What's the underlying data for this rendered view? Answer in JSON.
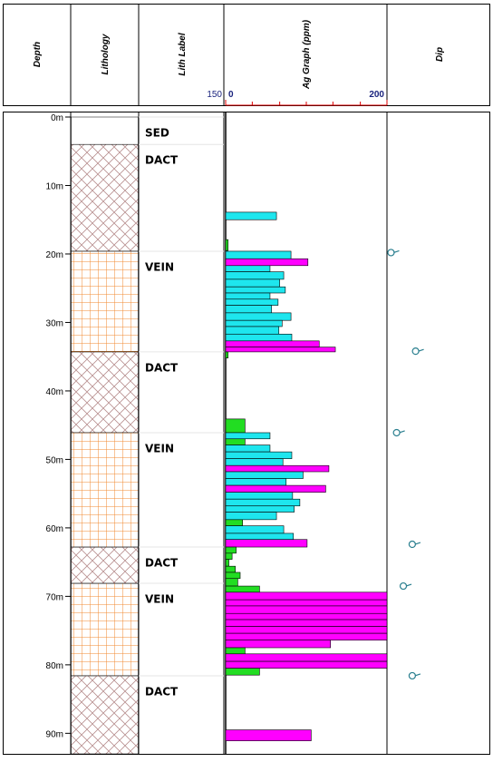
{
  "chart_data": {
    "type": "well-log",
    "headers": {
      "depth": "Depth",
      "lithology": "Lithology",
      "lith_label": "Lith Label",
      "graph": "Ag Graph (ppm)",
      "dip": "Dip",
      "label_scale": "150"
    },
    "ylim": [
      0,
      93
    ],
    "yticks": [
      {
        "value": 0,
        "label": "0m"
      },
      {
        "value": 10,
        "label": "10m"
      },
      {
        "value": 20,
        "label": "20m"
      },
      {
        "value": 30,
        "label": "30m"
      },
      {
        "value": 40,
        "label": "40m"
      },
      {
        "value": 50,
        "label": "50m"
      },
      {
        "value": 60,
        "label": "60m"
      },
      {
        "value": 70,
        "label": "70m"
      },
      {
        "value": 80,
        "label": "80m"
      },
      {
        "value": 90,
        "label": "90m"
      }
    ],
    "xlim": [
      0,
      200
    ],
    "xticks": [
      0,
      200
    ],
    "xminor": [
      33,
      67,
      100,
      133,
      167
    ],
    "dip_xlim": [
      0,
      90
    ],
    "palette": {
      "cyan": "#1ee6ee",
      "magenta": "#ff00ff",
      "green": "#22dd22"
    },
    "lithology": [
      {
        "from": 0,
        "to": 4,
        "label": "SED",
        "pattern": "none"
      },
      {
        "from": 4,
        "to": 19.6,
        "label": "DACT",
        "pattern": "cross"
      },
      {
        "from": 19.6,
        "to": 34.3,
        "label": "VEIN",
        "pattern": "grid"
      },
      {
        "from": 34.3,
        "to": 46.1,
        "label": "DACT",
        "pattern": "cross"
      },
      {
        "from": 46.1,
        "to": 62.8,
        "label": "VEIN",
        "pattern": "grid"
      },
      {
        "from": 62.8,
        "to": 68.1,
        "label": "DACT",
        "pattern": "cross"
      },
      {
        "from": 68.1,
        "to": 81.6,
        "label": "VEIN",
        "pattern": "grid"
      },
      {
        "from": 81.6,
        "to": 93,
        "label": "DACT",
        "pattern": "cross"
      }
    ],
    "intervals": [
      {
        "from": 13.9,
        "to": 15.0,
        "value": 63,
        "color": "cyan"
      },
      {
        "from": 17.9,
        "to": 19.5,
        "value": 3,
        "color": "green"
      },
      {
        "from": 19.6,
        "to": 20.7,
        "value": 81,
        "color": "cyan"
      },
      {
        "from": 20.7,
        "to": 21.7,
        "value": 102,
        "color": "magenta"
      },
      {
        "from": 21.7,
        "to": 22.6,
        "value": 55,
        "color": "cyan"
      },
      {
        "from": 22.6,
        "to": 23.7,
        "value": 72,
        "color": "cyan"
      },
      {
        "from": 23.7,
        "to": 24.8,
        "value": 67,
        "color": "cyan"
      },
      {
        "from": 24.8,
        "to": 25.7,
        "value": 74,
        "color": "cyan"
      },
      {
        "from": 25.7,
        "to": 26.6,
        "value": 55,
        "color": "cyan"
      },
      {
        "from": 26.6,
        "to": 27.5,
        "value": 65,
        "color": "cyan"
      },
      {
        "from": 27.5,
        "to": 28.6,
        "value": 57,
        "color": "cyan"
      },
      {
        "from": 28.6,
        "to": 29.7,
        "value": 81,
        "color": "cyan"
      },
      {
        "from": 29.7,
        "to": 30.6,
        "value": 70,
        "color": "cyan"
      },
      {
        "from": 30.6,
        "to": 31.7,
        "value": 66,
        "color": "cyan"
      },
      {
        "from": 31.7,
        "to": 32.7,
        "value": 82,
        "color": "cyan"
      },
      {
        "from": 32.7,
        "to": 33.6,
        "value": 116,
        "color": "magenta"
      },
      {
        "from": 33.6,
        "to": 34.3,
        "value": 136,
        "color": "magenta"
      },
      {
        "from": 34.3,
        "to": 35.2,
        "value": 3,
        "color": "green"
      },
      {
        "from": 44.1,
        "to": 46.1,
        "value": 24,
        "color": "green"
      },
      {
        "from": 46.1,
        "to": 47.0,
        "value": 55,
        "color": "cyan"
      },
      {
        "from": 47.0,
        "to": 47.9,
        "value": 24,
        "color": "green"
      },
      {
        "from": 47.9,
        "to": 48.9,
        "value": 55,
        "color": "cyan"
      },
      {
        "from": 48.9,
        "to": 49.9,
        "value": 82,
        "color": "cyan"
      },
      {
        "from": 49.9,
        "to": 50.9,
        "value": 71,
        "color": "cyan"
      },
      {
        "from": 50.9,
        "to": 51.8,
        "value": 128,
        "color": "magenta"
      },
      {
        "from": 51.8,
        "to": 52.8,
        "value": 96,
        "color": "cyan"
      },
      {
        "from": 52.8,
        "to": 53.8,
        "value": 75,
        "color": "cyan"
      },
      {
        "from": 53.8,
        "to": 54.8,
        "value": 124,
        "color": "magenta"
      },
      {
        "from": 54.8,
        "to": 55.8,
        "value": 83,
        "color": "cyan"
      },
      {
        "from": 55.8,
        "to": 56.8,
        "value": 92,
        "color": "cyan"
      },
      {
        "from": 56.8,
        "to": 57.7,
        "value": 85,
        "color": "cyan"
      },
      {
        "from": 57.7,
        "to": 58.8,
        "value": 63,
        "color": "cyan"
      },
      {
        "from": 58.8,
        "to": 59.7,
        "value": 21,
        "color": "green"
      },
      {
        "from": 59.7,
        "to": 60.8,
        "value": 72,
        "color": "cyan"
      },
      {
        "from": 60.8,
        "to": 61.7,
        "value": 84,
        "color": "cyan"
      },
      {
        "from": 61.7,
        "to": 62.8,
        "value": 101,
        "color": "magenta"
      },
      {
        "from": 62.8,
        "to": 63.7,
        "value": 13,
        "color": "green"
      },
      {
        "from": 63.7,
        "to": 64.6,
        "value": 8,
        "color": "green"
      },
      {
        "from": 64.6,
        "to": 65.6,
        "value": 4,
        "color": "green"
      },
      {
        "from": 65.6,
        "to": 66.5,
        "value": 12,
        "color": "green"
      },
      {
        "from": 66.5,
        "to": 67.4,
        "value": 18,
        "color": "green"
      },
      {
        "from": 67.4,
        "to": 68.5,
        "value": 15,
        "color": "green"
      },
      {
        "from": 68.5,
        "to": 69.4,
        "value": 42,
        "color": "green"
      },
      {
        "from": 69.4,
        "to": 70.5,
        "value": 200,
        "color": "magenta"
      },
      {
        "from": 70.5,
        "to": 71.4,
        "value": 200,
        "color": "magenta"
      },
      {
        "from": 71.4,
        "to": 72.5,
        "value": 200,
        "color": "magenta"
      },
      {
        "from": 72.5,
        "to": 73.4,
        "value": 200,
        "color": "magenta"
      },
      {
        "from": 73.4,
        "to": 74.4,
        "value": 200,
        "color": "magenta"
      },
      {
        "from": 74.4,
        "to": 75.4,
        "value": 200,
        "color": "magenta"
      },
      {
        "from": 75.4,
        "to": 76.4,
        "value": 200,
        "color": "magenta"
      },
      {
        "from": 76.4,
        "to": 77.5,
        "value": 130,
        "color": "magenta"
      },
      {
        "from": 77.5,
        "to": 78.4,
        "value": 24,
        "color": "green"
      },
      {
        "from": 78.4,
        "to": 79.5,
        "value": 200,
        "color": "magenta"
      },
      {
        "from": 79.5,
        "to": 80.5,
        "value": 200,
        "color": "magenta"
      },
      {
        "from": 80.5,
        "to": 81.5,
        "value": 42,
        "color": "green"
      },
      {
        "from": 89.5,
        "to": 91.1,
        "value": 106,
        "color": "magenta"
      }
    ],
    "dips": [
      {
        "depth": 19.8,
        "dip": 2
      },
      {
        "depth": 34.2,
        "dip": 24
      },
      {
        "depth": 46.1,
        "dip": 7
      },
      {
        "depth": 62.4,
        "dip": 21
      },
      {
        "depth": 68.5,
        "dip": 13
      },
      {
        "depth": 81.6,
        "dip": 21
      }
    ]
  }
}
